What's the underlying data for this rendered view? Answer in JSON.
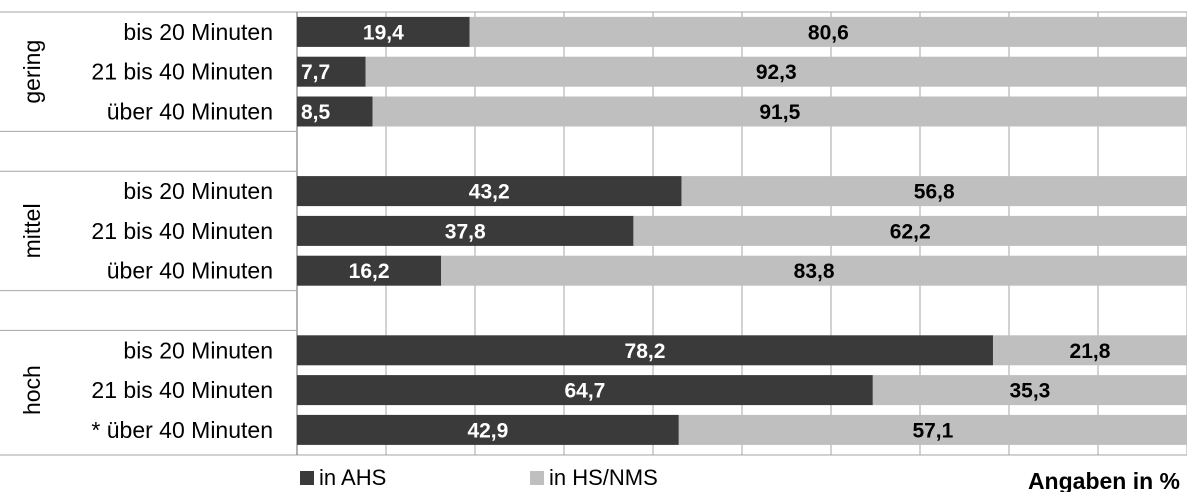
{
  "chart_data": {
    "type": "bar",
    "orientation": "horizontal",
    "stacked": true,
    "xlim": [
      0,
      100
    ],
    "grid": true,
    "legend_placement": "bottom",
    "note": "Angaben in %",
    "groups": [
      {
        "label": "gering",
        "rows": [
          {
            "label": "bis 20 Minuten",
            "values": [
              19.4,
              80.6
            ],
            "texts": [
              "19,4",
              "80,6"
            ]
          },
          {
            "label": "21 bis 40 Minuten",
            "values": [
              7.7,
              92.3
            ],
            "texts": [
              "7,7",
              "92,3"
            ]
          },
          {
            "label": "über 40 Minuten",
            "values": [
              8.5,
              91.5
            ],
            "texts": [
              "8,5",
              "91,5"
            ]
          }
        ]
      },
      {
        "label": "mittel",
        "rows": [
          {
            "label": "bis 20 Minuten",
            "values": [
              43.2,
              56.8
            ],
            "texts": [
              "43,2",
              "56,8"
            ]
          },
          {
            "label": "21 bis 40 Minuten",
            "values": [
              37.8,
              62.2
            ],
            "texts": [
              "37,8",
              "62,2"
            ]
          },
          {
            "label": "über 40 Minuten",
            "values": [
              16.2,
              83.8
            ],
            "texts": [
              "16,2",
              "83,8"
            ]
          }
        ]
      },
      {
        "label": "hoch",
        "rows": [
          {
            "label": "bis 20 Minuten",
            "values": [
              78.2,
              21.8
            ],
            "texts": [
              "78,2",
              "21,8"
            ]
          },
          {
            "label": "21 bis 40 Minuten",
            "values": [
              64.7,
              35.3
            ],
            "texts": [
              "64,7",
              "35,3"
            ]
          },
          {
            "label": "* über 40 Minuten",
            "values": [
              42.9,
              57.1
            ],
            "texts": [
              "42,9",
              "57,1"
            ]
          }
        ]
      }
    ],
    "series": [
      {
        "name": "in AHS",
        "color": "#3a3a3a",
        "label_color": "#ffffff"
      },
      {
        "name": "in HS/NMS",
        "color": "#bfbfbf",
        "label_color": "#000000"
      }
    ]
  }
}
